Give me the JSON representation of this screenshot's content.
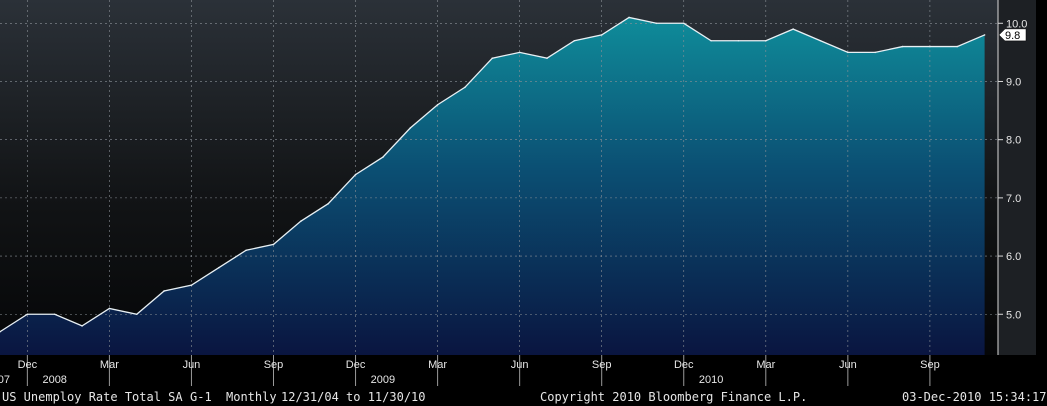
{
  "chart_data": {
    "type": "area",
    "title": "US Unemploy Rate Total SA",
    "ticker": "G-1",
    "frequency": "Monthly",
    "date_range": "12/31/04 to 11/30/10",
    "copyright": "Copyright 2010 Bloomberg Finance L.P.",
    "timestamp": "03-Dec-2010 15:34:17",
    "last_value_label": "9.8",
    "x": [
      "2007-11",
      "2007-12",
      "2008-01",
      "2008-02",
      "2008-03",
      "2008-04",
      "2008-05",
      "2008-06",
      "2008-07",
      "2008-08",
      "2008-09",
      "2008-10",
      "2008-11",
      "2008-12",
      "2009-01",
      "2009-02",
      "2009-03",
      "2009-04",
      "2009-05",
      "2009-06",
      "2009-07",
      "2009-08",
      "2009-09",
      "2009-10",
      "2009-11",
      "2009-12",
      "2010-01",
      "2010-02",
      "2010-03",
      "2010-04",
      "2010-05",
      "2010-06",
      "2010-07",
      "2010-08",
      "2010-09",
      "2010-10",
      "2010-11"
    ],
    "series": [
      {
        "values": [
          4.7,
          5.0,
          5.0,
          4.8,
          5.1,
          5.0,
          5.4,
          5.5,
          5.8,
          6.1,
          6.2,
          6.6,
          6.9,
          7.4,
          7.7,
          8.2,
          8.6,
          8.9,
          9.4,
          9.5,
          9.4,
          9.7,
          9.8,
          10.1,
          10.0,
          10.0,
          9.7,
          9.7,
          9.7,
          9.9,
          9.7,
          9.5,
          9.5,
          9.6,
          9.6,
          9.6,
          9.8
        ]
      }
    ],
    "ylim": [
      4.3,
      10.4
    ],
    "y_ticks": [
      "5.0",
      "6.0",
      "7.0",
      "8.0",
      "9.0",
      "10.0"
    ],
    "x_tick_labels": [
      {
        "month": "2007-12",
        "label": "Dec"
      },
      {
        "month": "2008-03",
        "label": "Mar"
      },
      {
        "month": "2008-06",
        "label": "Jun"
      },
      {
        "month": "2008-09",
        "label": "Sep"
      },
      {
        "month": "2008-12",
        "label": "Dec"
      },
      {
        "month": "2009-03",
        "label": "Mar"
      },
      {
        "month": "2009-06",
        "label": "Jun"
      },
      {
        "month": "2009-09",
        "label": "Sep"
      },
      {
        "month": "2009-12",
        "label": "Dec"
      },
      {
        "month": "2010-03",
        "label": "Mar"
      },
      {
        "month": "2010-06",
        "label": "Jun"
      },
      {
        "month": "2010-09",
        "label": "Sep"
      }
    ],
    "year_labels": [
      {
        "month": "2007-11",
        "label": "07"
      },
      {
        "month": "2008-01",
        "label": "2008"
      },
      {
        "month": "2009-01",
        "label": "2009"
      },
      {
        "month": "2010-01",
        "label": "2010"
      }
    ],
    "grid": true,
    "colors": {
      "fill_top": "#0f8c9a",
      "fill_bottom": "#0a1540",
      "line": "#e8f0f4",
      "background_top": "#2b3138",
      "background_bottom": "#050607"
    }
  }
}
